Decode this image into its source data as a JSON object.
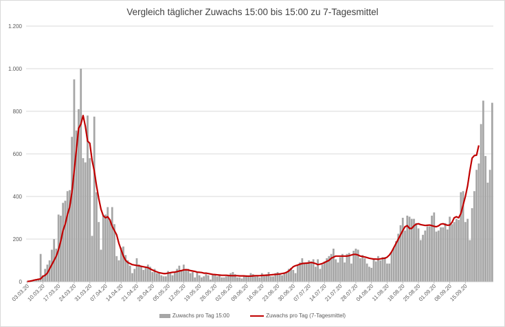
{
  "chart_data": {
    "type": "bar",
    "title": "Vergleich täglicher Zuwachs 15:00 bis 15:00 zu 7-Tagesmittel",
    "ylim": [
      0,
      1200
    ],
    "yticks": [
      0,
      200,
      400,
      600,
      800,
      1000,
      1200
    ],
    "ytick_labels": [
      "0",
      "200",
      "400",
      "600",
      "800",
      "1.000",
      "1.200"
    ],
    "grid": "horizontal",
    "legend_position": "bottom",
    "x_start": "03.03.20",
    "x_labels": [
      "03.03.20",
      "10.03.20",
      "17.03.20",
      "24.03.20",
      "31.03.20",
      "07.04.20",
      "14.04.20",
      "21.04.20",
      "28.04.20",
      "05.05.20",
      "12.05.20",
      "19.05.20",
      "26.05.20",
      "02.06.20",
      "09.06.20",
      "16.06.20",
      "23.06.20",
      "30.06.20",
      "07.07.20",
      "14.07.20",
      "21.07.20",
      "28.07.20",
      "04.08.20",
      "11.08.20",
      "18.08.20",
      "25.08.20",
      "01.09.20",
      "08.09.20",
      "15.09.20"
    ],
    "series": [
      {
        "name": "Zuwachs pro Tag 15:00",
        "type": "bar",
        "color": "#a6a6a6",
        "values": [
          1,
          3,
          5,
          8,
          12,
          15,
          130,
          30,
          60,
          80,
          100,
          150,
          200,
          155,
          315,
          310,
          370,
          380,
          425,
          430,
          680,
          950,
          710,
          810,
          1000,
          580,
          560,
          780,
          580,
          215,
          775,
          420,
          280,
          150,
          310,
          315,
          350,
          290,
          350,
          270,
          120,
          100,
          160,
          165,
          125,
          100,
          75,
          40,
          60,
          110,
          80,
          75,
          55,
          65,
          80,
          70,
          45,
          60,
          40,
          45,
          30,
          25,
          25,
          50,
          40,
          30,
          45,
          60,
          75,
          50,
          80,
          60,
          60,
          40,
          45,
          20,
          45,
          30,
          20,
          25,
          35,
          30,
          10,
          35,
          30,
          25,
          30,
          20,
          20,
          25,
          30,
          40,
          45,
          35,
          20,
          20,
          15,
          25,
          30,
          25,
          40,
          35,
          25,
          30,
          20,
          40,
          30,
          35,
          45,
          25,
          25,
          40,
          45,
          40,
          30,
          40,
          45,
          60,
          65,
          55,
          40,
          75,
          90,
          110,
          90,
          85,
          100,
          95,
          105,
          70,
          105,
          60,
          80,
          95,
          110,
          120,
          130,
          155,
          105,
          90,
          115,
          130,
          90,
          130,
          135,
          85,
          145,
          155,
          150,
          110,
          125,
          110,
          85,
          70,
          65,
          110,
          95,
          120,
          100,
          115,
          115,
          85,
          85,
          140,
          160,
          190,
          225,
          265,
          300,
          240,
          310,
          305,
          295,
          295,
          275,
          250,
          195,
          220,
          240,
          260,
          260,
          310,
          325,
          235,
          240,
          255,
          255,
          275,
          245,
          305,
          270,
          280,
          295,
          290,
          420,
          425,
          280,
          295,
          195,
          345,
          425,
          525,
          555,
          740,
          850,
          590,
          465,
          525,
          840
        ]
      },
      {
        "name": "Zuwachs pro Tag (7-Tagesmittel)",
        "type": "line",
        "color": "#c00000",
        "values": [
          1,
          2,
          4,
          7,
          9,
          11,
          13,
          25,
          30,
          40,
          60,
          80,
          100,
          120,
          150,
          190,
          240,
          270,
          315,
          350,
          420,
          520,
          620,
          720,
          740,
          780,
          730,
          660,
          650,
          570,
          520,
          450,
          390,
          340,
          310,
          300,
          305,
          290,
          260,
          240,
          220,
          180,
          150,
          120,
          100,
          90,
          85,
          80,
          78,
          76,
          75,
          72,
          70,
          68,
          66,
          60,
          55,
          50,
          46,
          42,
          40,
          38,
          38,
          40,
          42,
          44,
          45,
          47,
          50,
          52,
          55,
          56,
          55,
          52,
          50,
          48,
          45,
          44,
          43,
          40,
          40,
          38,
          36,
          34,
          33,
          32,
          31,
          30,
          30,
          30,
          29,
          28,
          28,
          28,
          28,
          27,
          27,
          27,
          26,
          26,
          26,
          27,
          28,
          28,
          28,
          29,
          30,
          30,
          31,
          32,
          33,
          34,
          35,
          36,
          38,
          40,
          44,
          50,
          60,
          70,
          75,
          78,
          82,
          85,
          86,
          87,
          88,
          90,
          88,
          85,
          80,
          82,
          85,
          90,
          95,
          100,
          110,
          115,
          120,
          120,
          120,
          120,
          120,
          120,
          122,
          125,
          128,
          128,
          125,
          120,
          118,
          116,
          113,
          110,
          108,
          106,
          106,
          105,
          107,
          109,
          110,
          115,
          125,
          140,
          160,
          180,
          200,
          220,
          240,
          258,
          263,
          250,
          250,
          262,
          270,
          272,
          268,
          266,
          264,
          265,
          266,
          263,
          260,
          258,
          262,
          270,
          272,
          268,
          265,
          266,
          278,
          300,
          305,
          300,
          320,
          360,
          400,
          450,
          520,
          580,
          592,
          594,
          640
        ]
      }
    ]
  }
}
